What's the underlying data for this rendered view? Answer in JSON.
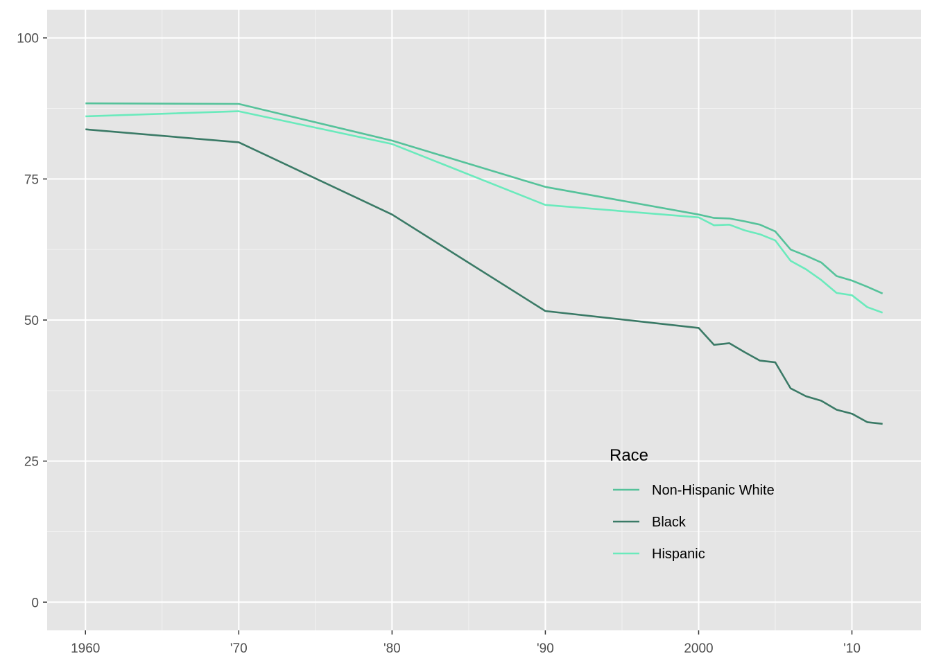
{
  "chart_data": {
    "type": "line",
    "title": "",
    "xlabel": "",
    "ylabel": "",
    "xlim": [
      1957.5,
      2014.5
    ],
    "ylim": [
      -5,
      105
    ],
    "x_ticks": [
      {
        "value": 1960,
        "label": "1960"
      },
      {
        "value": 1970,
        "label": "'70"
      },
      {
        "value": 1980,
        "label": "'80"
      },
      {
        "value": 1990,
        "label": "'90"
      },
      {
        "value": 2000,
        "label": "2000"
      },
      {
        "value": 2010,
        "label": "'10"
      }
    ],
    "y_ticks": [
      {
        "value": 0,
        "label": "0"
      },
      {
        "value": 25,
        "label": "25"
      },
      {
        "value": 50,
        "label": "50"
      },
      {
        "value": 75,
        "label": "75"
      },
      {
        "value": 100,
        "label": "100"
      }
    ],
    "grid": true,
    "background": "#e5e5e5",
    "legend": {
      "title": "Race",
      "position": "inside-bottom-right"
    },
    "series": [
      {
        "name": "Non-Hispanic White",
        "color": "#55c29a",
        "x": [
          1960,
          1970,
          1980,
          1990,
          2000,
          2001,
          2002,
          2003,
          2004,
          2005,
          2006,
          2007,
          2008,
          2009,
          2010,
          2011,
          2012
        ],
        "y": [
          88.4,
          88.3,
          81.8,
          73.6,
          68.7,
          68.1,
          68.0,
          67.5,
          66.9,
          65.7,
          62.5,
          61.4,
          60.2,
          57.8,
          57.0,
          55.9,
          54.7
        ]
      },
      {
        "name": "Black",
        "color": "#3a7a66",
        "x": [
          1960,
          1970,
          1980,
          1990,
          2000,
          2001,
          2002,
          2003,
          2004,
          2005,
          2006,
          2007,
          2008,
          2009,
          2010,
          2011,
          2012
        ],
        "y": [
          83.8,
          81.5,
          68.7,
          51.6,
          48.6,
          45.6,
          45.9,
          44.3,
          42.8,
          42.5,
          37.9,
          36.5,
          35.7,
          34.1,
          33.4,
          31.9,
          31.6
        ]
      },
      {
        "name": "Hispanic",
        "color": "#6aeabc",
        "x": [
          1960,
          1970,
          1980,
          1990,
          2000,
          2001,
          2002,
          2003,
          2004,
          2005,
          2006,
          2007,
          2008,
          2009,
          2010,
          2011,
          2012
        ],
        "y": [
          86.1,
          87.0,
          81.2,
          70.4,
          68.2,
          66.8,
          66.9,
          65.9,
          65.2,
          64.1,
          60.5,
          59.0,
          57.1,
          54.8,
          54.4,
          52.3,
          51.3
        ]
      }
    ]
  }
}
